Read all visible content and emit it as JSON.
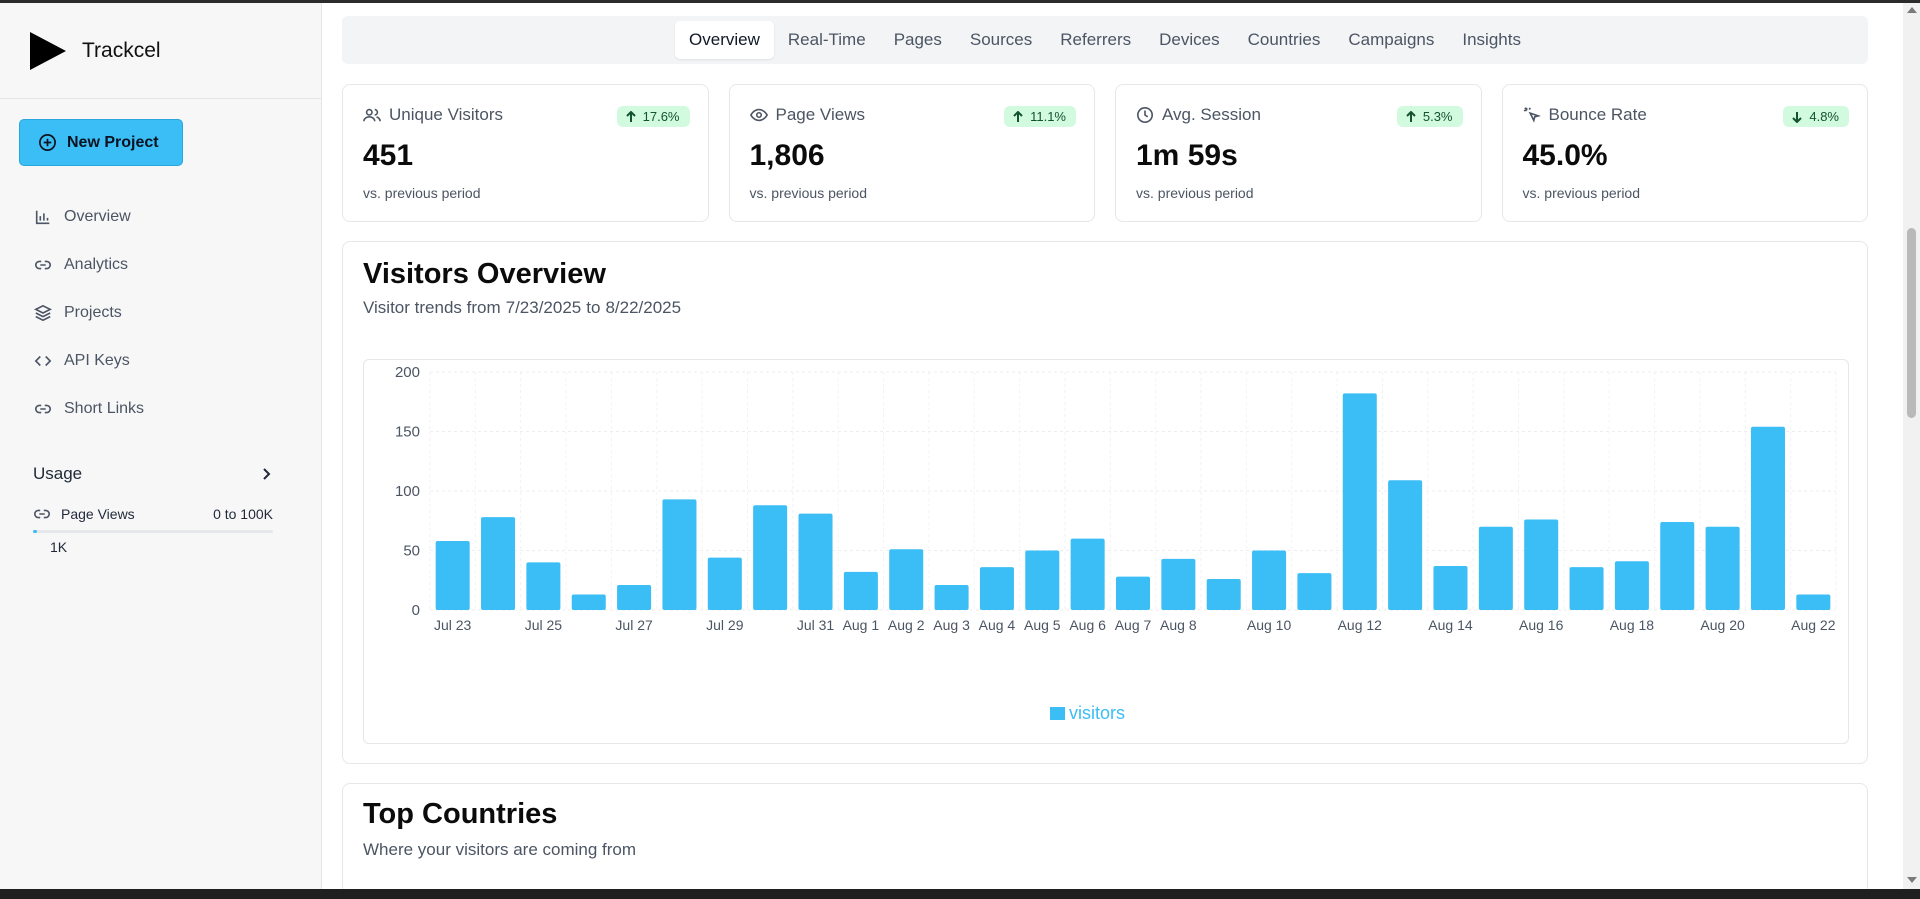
{
  "app": {
    "name": "Trackcel"
  },
  "sidebar": {
    "new_project": "New Project",
    "items": [
      {
        "label": "Overview",
        "icon": "bar-chart-icon"
      },
      {
        "label": "Analytics",
        "icon": "link-icon"
      },
      {
        "label": "Projects",
        "icon": "layers-icon"
      },
      {
        "label": "API Keys",
        "icon": "code-icon"
      },
      {
        "label": "Short Links",
        "icon": "link-icon"
      }
    ],
    "usage": {
      "title": "Usage",
      "metric": "Page Views",
      "range": "0 to 100K",
      "current": "1K",
      "fraction": 0.01
    }
  },
  "tabs": [
    "Overview",
    "Real-Time",
    "Pages",
    "Sources",
    "Referrers",
    "Devices",
    "Countries",
    "Campaigns",
    "Insights"
  ],
  "active_tab": "Overview",
  "stats": [
    {
      "label": "Unique Visitors",
      "icon": "users-icon",
      "change": "17.6%",
      "direction": "up",
      "value": "451",
      "sub": "vs. previous period"
    },
    {
      "label": "Page Views",
      "icon": "eye-icon",
      "change": "11.1%",
      "direction": "up",
      "value": "1,806",
      "sub": "vs. previous period"
    },
    {
      "label": "Avg. Session",
      "icon": "clock-icon",
      "change": "5.3%",
      "direction": "up",
      "value": "1m 59s",
      "sub": "vs. previous period"
    },
    {
      "label": "Bounce Rate",
      "icon": "pointer-click-icon",
      "change": "4.8%",
      "direction": "down",
      "value": "45.0%",
      "sub": "vs. previous period"
    }
  ],
  "visitors_panel": {
    "title": "Visitors Overview",
    "subtitle_prefix": "Visitor trends from",
    "start": "7/23/2025",
    "joiner": "to",
    "end": "8/22/2025"
  },
  "countries_panel": {
    "title": "Top Countries",
    "subtitle": "Where your visitors are coming from"
  },
  "colors": {
    "accent": "#3bbdf5",
    "badge_bg": "#d1fadf"
  },
  "chart_data": {
    "type": "bar",
    "categories": [
      "Jul 23",
      "Jul 24",
      "Jul 25",
      "Jul 26",
      "Jul 27",
      "Jul 28",
      "Jul 29",
      "Jul 30",
      "Jul 31",
      "Aug 1",
      "Aug 2",
      "Aug 3",
      "Aug 4",
      "Aug 5",
      "Aug 6",
      "Aug 7",
      "Aug 8",
      "Aug 9",
      "Aug 10",
      "Aug 11",
      "Aug 12",
      "Aug 13",
      "Aug 14",
      "Aug 15",
      "Aug 16",
      "Aug 17",
      "Aug 18",
      "Aug 19",
      "Aug 20",
      "Aug 21",
      "Aug 22"
    ],
    "tick_labels": [
      "Jul 23",
      "",
      "Jul 25",
      "",
      "Jul 27",
      "",
      "Jul 29",
      "",
      "Jul 31",
      "Aug 1",
      "Aug 2",
      "Aug 3",
      "Aug 4",
      "Aug 5",
      "Aug 6",
      "Aug 7",
      "Aug 8",
      "",
      "Aug 10",
      "",
      "Aug 12",
      "",
      "Aug 14",
      "",
      "Aug 16",
      "",
      "Aug 18",
      "",
      "Aug 20",
      "",
      "Aug 22"
    ],
    "series": [
      {
        "name": "visitors",
        "values": [
          58,
          78,
          40,
          13,
          21,
          93,
          44,
          88,
          81,
          32,
          51,
          21,
          36,
          50,
          60,
          28,
          43,
          26,
          50,
          31,
          182,
          109,
          37,
          70,
          76,
          36,
          41,
          74,
          70,
          154,
          13
        ]
      }
    ],
    "yticks": [
      0,
      50,
      100,
      150,
      200
    ],
    "ylim": [
      0,
      200
    ],
    "grid": true,
    "legend": "bottom"
  }
}
